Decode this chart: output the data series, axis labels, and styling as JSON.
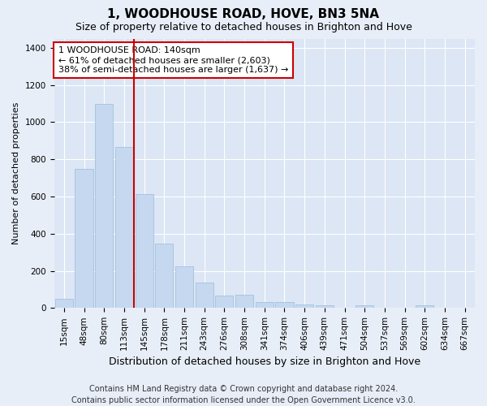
{
  "title": "1, WOODHOUSE ROAD, HOVE, BN3 5NA",
  "subtitle": "Size of property relative to detached houses in Brighton and Hove",
  "xlabel": "Distribution of detached houses by size in Brighton and Hove",
  "ylabel": "Number of detached properties",
  "footer_line1": "Contains HM Land Registry data © Crown copyright and database right 2024.",
  "footer_line2": "Contains public sector information licensed under the Open Government Licence v3.0.",
  "bar_labels": [
    "15sqm",
    "48sqm",
    "80sqm",
    "113sqm",
    "145sqm",
    "178sqm",
    "211sqm",
    "243sqm",
    "276sqm",
    "308sqm",
    "341sqm",
    "374sqm",
    "406sqm",
    "439sqm",
    "471sqm",
    "504sqm",
    "537sqm",
    "569sqm",
    "602sqm",
    "634sqm",
    "667sqm"
  ],
  "bar_values": [
    50,
    750,
    1100,
    865,
    615,
    345,
    225,
    135,
    65,
    70,
    30,
    30,
    20,
    15,
    0,
    15,
    0,
    0,
    15,
    0,
    0
  ],
  "bar_color": "#c5d8f0",
  "bar_edge_color": "#9bbcd8",
  "vline_x": 3.5,
  "vline_color": "#cc0000",
  "vline_label": "1 WOODHOUSE ROAD: 140sqm",
  "annotation_smaller": "← 61% of detached houses are smaller (2,603)",
  "annotation_larger": "38% of semi-detached houses are larger (1,637) →",
  "annotation_box_color": "#cc0000",
  "annotation_box_facecolor": "#ffffff",
  "ylim": [
    0,
    1450
  ],
  "yticks": [
    0,
    200,
    400,
    600,
    800,
    1000,
    1200,
    1400
  ],
  "background_color": "#e8eef8",
  "plot_bg_color": "#dce6f5",
  "grid_color": "#ffffff",
  "title_fontsize": 11,
  "subtitle_fontsize": 9,
  "xlabel_fontsize": 9,
  "ylabel_fontsize": 8,
  "tick_fontsize": 7.5,
  "annotation_fontsize": 8,
  "footer_fontsize": 7
}
